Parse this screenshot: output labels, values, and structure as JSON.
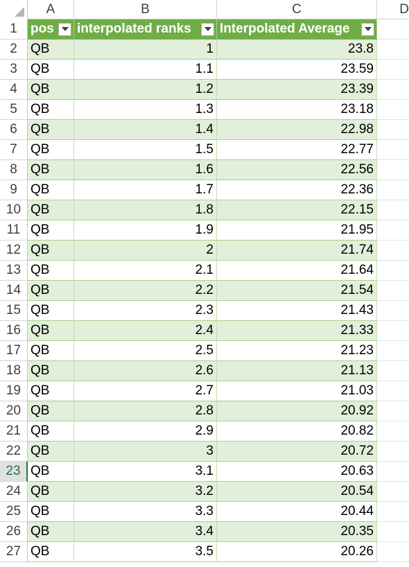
{
  "columns": [
    "A",
    "B",
    "C",
    "D"
  ],
  "table": {
    "headers": [
      "pos",
      "interpolated ranks",
      "Interpolated Average"
    ],
    "active_row": "23",
    "rows": [
      {
        "num": "1"
      },
      {
        "num": "2",
        "pos": "QB",
        "rank": "1",
        "avg": "23.8"
      },
      {
        "num": "3",
        "pos": "QB",
        "rank": "1.1",
        "avg": "23.59"
      },
      {
        "num": "4",
        "pos": "QB",
        "rank": "1.2",
        "avg": "23.39"
      },
      {
        "num": "5",
        "pos": "QB",
        "rank": "1.3",
        "avg": "23.18"
      },
      {
        "num": "6",
        "pos": "QB",
        "rank": "1.4",
        "avg": "22.98"
      },
      {
        "num": "7",
        "pos": "QB",
        "rank": "1.5",
        "avg": "22.77"
      },
      {
        "num": "8",
        "pos": "QB",
        "rank": "1.6",
        "avg": "22.56"
      },
      {
        "num": "9",
        "pos": "QB",
        "rank": "1.7",
        "avg": "22.36"
      },
      {
        "num": "10",
        "pos": "QB",
        "rank": "1.8",
        "avg": "22.15"
      },
      {
        "num": "11",
        "pos": "QB",
        "rank": "1.9",
        "avg": "21.95"
      },
      {
        "num": "12",
        "pos": "QB",
        "rank": "2",
        "avg": "21.74"
      },
      {
        "num": "13",
        "pos": "QB",
        "rank": "2.1",
        "avg": "21.64"
      },
      {
        "num": "14",
        "pos": "QB",
        "rank": "2.2",
        "avg": "21.54"
      },
      {
        "num": "15",
        "pos": "QB",
        "rank": "2.3",
        "avg": "21.43"
      },
      {
        "num": "16",
        "pos": "QB",
        "rank": "2.4",
        "avg": "21.33"
      },
      {
        "num": "17",
        "pos": "QB",
        "rank": "2.5",
        "avg": "21.23"
      },
      {
        "num": "18",
        "pos": "QB",
        "rank": "2.6",
        "avg": "21.13"
      },
      {
        "num": "19",
        "pos": "QB",
        "rank": "2.7",
        "avg": "21.03"
      },
      {
        "num": "20",
        "pos": "QB",
        "rank": "2.8",
        "avg": "20.92"
      },
      {
        "num": "21",
        "pos": "QB",
        "rank": "2.9",
        "avg": "20.82"
      },
      {
        "num": "22",
        "pos": "QB",
        "rank": "3",
        "avg": "20.72"
      },
      {
        "num": "23",
        "pos": "QB",
        "rank": "3.1",
        "avg": "20.63"
      },
      {
        "num": "24",
        "pos": "QB",
        "rank": "3.2",
        "avg": "20.54"
      },
      {
        "num": "25",
        "pos": "QB",
        "rank": "3.3",
        "avg": "20.44"
      },
      {
        "num": "26",
        "pos": "QB",
        "rank": "3.4",
        "avg": "20.35"
      },
      {
        "num": "27",
        "pos": "QB",
        "rank": "3.5",
        "avg": "20.26"
      }
    ]
  },
  "colors": {
    "header_fill": "#70ad47",
    "band_fill": "#e2efda",
    "active_row_accent": "#217346"
  },
  "icons": {
    "filter": "filter-dropdown-icon",
    "select_all": "select-all-triangle-icon"
  }
}
